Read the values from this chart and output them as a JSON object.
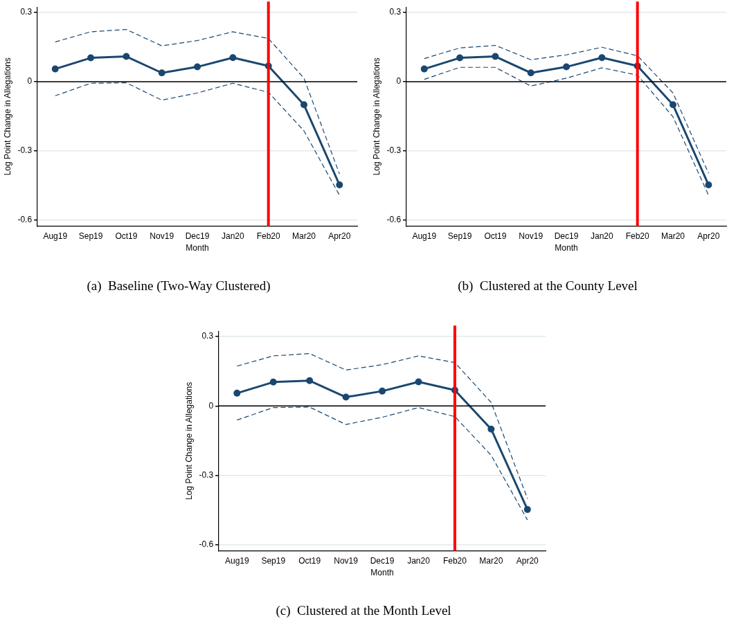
{
  "chart_data": [
    {
      "type": "line",
      "title": "(a)  Baseline (Two-Way Clustered)",
      "xlabel": "Month",
      "ylabel": "Log Point Change in Allegations",
      "categories": [
        "Aug19",
        "Sep19",
        "Oct19",
        "Nov19",
        "Dec19",
        "Jan20",
        "Feb20",
        "Mar20",
        "Apr20"
      ],
      "series": [
        {
          "color": "#1a476f",
          "marker": "circle",
          "line_style": "solid",
          "values": [
            0.055,
            0.103,
            0.109,
            0.038,
            0.064,
            0.104,
            0.068,
            -0.1,
            -0.447
          ]
        },
        {
          "color": "#1a476f",
          "marker": "none",
          "line_style": "dashed",
          "values": [
            0.172,
            0.216,
            0.226,
            0.155,
            0.178,
            0.216,
            0.187,
            0.015,
            -0.4
          ]
        },
        {
          "color": "#1a476f",
          "marker": "none",
          "line_style": "dashed",
          "values": [
            -0.061,
            -0.007,
            -0.005,
            -0.08,
            -0.049,
            -0.007,
            -0.046,
            -0.213,
            -0.492
          ]
        }
      ],
      "ylim": [
        -0.625,
        0.323
      ],
      "yticks": [
        {
          "value": -0.6,
          "label": "-0.6"
        },
        {
          "value": -0.3,
          "label": "-0.3"
        },
        {
          "value": 0,
          "label": "0"
        },
        {
          "value": 0.3,
          "label": "0.3"
        }
      ],
      "grid": "y",
      "legend": false,
      "ref_lines": [
        {
          "axis": "y",
          "value": 0,
          "color": "#000000"
        },
        {
          "axis": "x",
          "value": "Feb20",
          "color": "#ff0000"
        }
      ]
    },
    {
      "type": "line",
      "title": "(b)  Clustered at the County Level",
      "xlabel": "Month",
      "ylabel": "Log Point Change in Allegations",
      "categories": [
        "Aug19",
        "Sep19",
        "Oct19",
        "Nov19",
        "Dec19",
        "Jan20",
        "Feb20",
        "Mar20",
        "Apr20"
      ],
      "series": [
        {
          "color": "#1a476f",
          "marker": "circle",
          "line_style": "solid",
          "values": [
            0.055,
            0.103,
            0.109,
            0.038,
            0.064,
            0.104,
            0.068,
            -0.1,
            -0.447
          ]
        },
        {
          "color": "#1a476f",
          "marker": "none",
          "line_style": "dashed",
          "values": [
            0.1,
            0.146,
            0.157,
            0.095,
            0.116,
            0.149,
            0.112,
            -0.049,
            -0.397
          ]
        },
        {
          "color": "#1a476f",
          "marker": "none",
          "line_style": "dashed",
          "values": [
            0.01,
            0.062,
            0.062,
            -0.019,
            0.015,
            0.06,
            0.028,
            -0.152,
            -0.492
          ]
        }
      ],
      "ylim": [
        -0.625,
        0.323
      ],
      "yticks": [
        {
          "value": -0.6,
          "label": "-0.6"
        },
        {
          "value": -0.3,
          "label": "-0.3"
        },
        {
          "value": 0,
          "label": "0"
        },
        {
          "value": 0.3,
          "label": "0.3"
        }
      ],
      "grid": "y",
      "legend": false,
      "ref_lines": [
        {
          "axis": "y",
          "value": 0,
          "color": "#000000"
        },
        {
          "axis": "x",
          "value": "Feb20",
          "color": "#ff0000"
        }
      ]
    },
    {
      "type": "line",
      "title": "(c)  Clustered at the Month Level",
      "xlabel": "Month",
      "ylabel": "Log Point Change in Allegations",
      "categories": [
        "Aug19",
        "Sep19",
        "Oct19",
        "Nov19",
        "Dec19",
        "Jan20",
        "Feb20",
        "Mar20",
        "Apr20"
      ],
      "series": [
        {
          "color": "#1a476f",
          "marker": "circle",
          "line_style": "solid",
          "values": [
            0.055,
            0.103,
            0.109,
            0.038,
            0.064,
            0.104,
            0.068,
            -0.1,
            -0.447
          ]
        },
        {
          "color": "#1a476f",
          "marker": "none",
          "line_style": "dashed",
          "values": [
            0.172,
            0.216,
            0.226,
            0.155,
            0.178,
            0.216,
            0.187,
            0.015,
            -0.4
          ]
        },
        {
          "color": "#1a476f",
          "marker": "none",
          "line_style": "dashed",
          "values": [
            -0.061,
            -0.007,
            -0.005,
            -0.08,
            -0.049,
            -0.007,
            -0.046,
            -0.213,
            -0.492
          ]
        }
      ],
      "ylim": [
        -0.625,
        0.323
      ],
      "yticks": [
        {
          "value": -0.6,
          "label": "-0.6"
        },
        {
          "value": -0.3,
          "label": "-0.3"
        },
        {
          "value": 0,
          "label": "0"
        },
        {
          "value": 0.3,
          "label": "0.3"
        }
      ],
      "grid": "y",
      "legend": false,
      "ref_lines": [
        {
          "axis": "y",
          "value": 0,
          "color": "#000000"
        },
        {
          "axis": "x",
          "value": "Feb20",
          "color": "#ff0000"
        }
      ]
    }
  ]
}
